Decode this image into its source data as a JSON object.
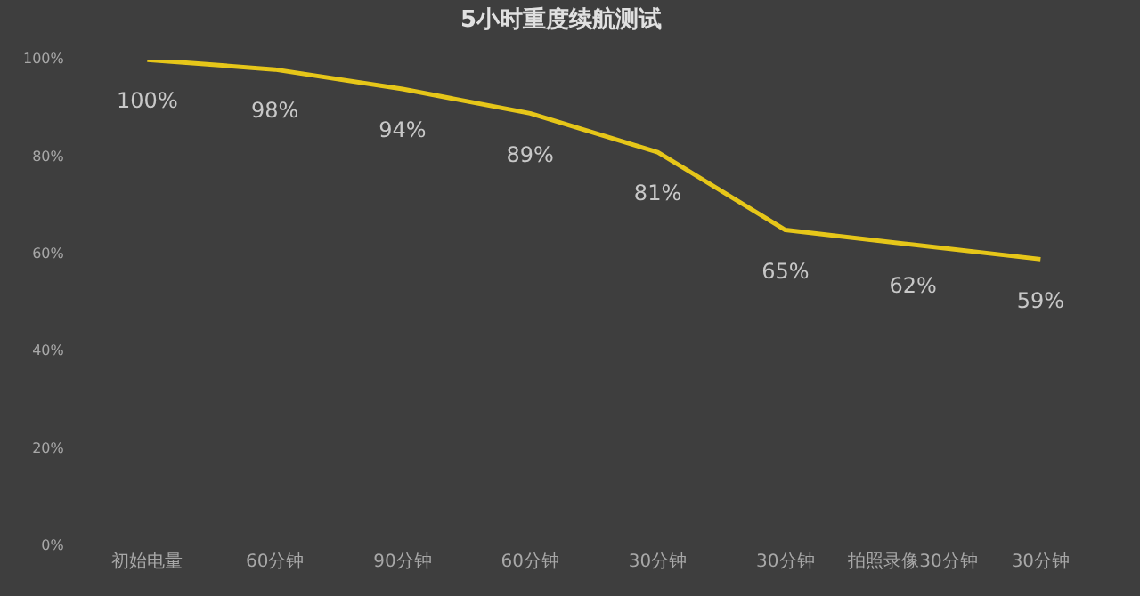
{
  "chart_data": {
    "type": "line",
    "title": "5小时重度续航测试",
    "categories": [
      "初始电量",
      "60分钟",
      "90分钟",
      "60分钟",
      "30分钟",
      "30分钟",
      "拍照录像30分钟",
      "30分钟"
    ],
    "series": [
      {
        "color": "#e6c619",
        "values": [
          100,
          98,
          94,
          89,
          81,
          65,
          62,
          59
        ]
      }
    ],
    "value_labels": [
      "100%",
      "98%",
      "94%",
      "89%",
      "81%",
      "65%",
      "62%",
      "59%"
    ],
    "ylim": [
      0,
      100
    ],
    "yticks": [
      {
        "value": 0,
        "label": "0%"
      },
      {
        "value": 20,
        "label": "20%"
      },
      {
        "value": 40,
        "label": "40%"
      },
      {
        "value": 60,
        "label": "60%"
      },
      {
        "value": 80,
        "label": "80%"
      },
      {
        "value": 100,
        "label": "100%"
      }
    ],
    "grid": false,
    "legend": false,
    "marker": "none",
    "line_style": "solid"
  }
}
